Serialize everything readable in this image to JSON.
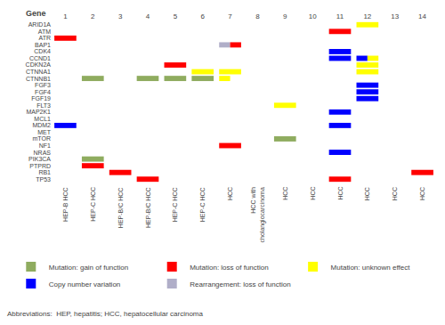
{
  "chart_data": {
    "type": "oncoprint",
    "ylabel": "Gene",
    "categories": [
      "1",
      "2",
      "3",
      "4",
      "5",
      "6",
      "7",
      "8",
      "9",
      "10",
      "11",
      "12",
      "13",
      "14"
    ],
    "rows": [
      "ARID1A",
      "ATM",
      "ATR",
      "BAP1",
      "CDK4",
      "CCND1",
      "CDKN2A",
      "CTNNA1",
      "CTNNB1",
      "FGF3",
      "FGF4",
      "FGF19",
      "FLT3",
      "MAP2K1",
      "MCL1",
      "MDM2",
      "MET",
      "mTOR",
      "NF1",
      "NRAS",
      "PIK3CA",
      "PTPRD",
      "RB1",
      "TP53"
    ],
    "column_labels": [
      "HEP-B HCC",
      "HEP-C HCC",
      "HEP-B/C HCC",
      "HEP-B/C HCC",
      "HEP-C HCC",
      "HEP-C HCC",
      "HCC",
      "HCC with\ncholangiocarcinoma",
      "HCC",
      "HCC",
      "HCC",
      "HCC",
      "HCC",
      "HCC"
    ],
    "cells": [
      {
        "gene": "ARID1A",
        "patient": 12,
        "color": "#ffff00",
        "xf": 0.0,
        "wf": 1.0
      },
      {
        "gene": "ATM",
        "patient": 11,
        "color": "#ff0000",
        "xf": 0.0,
        "wf": 1.0
      },
      {
        "gene": "ATR",
        "patient": 1,
        "color": "#ff0000",
        "xf": 0.0,
        "wf": 1.0
      },
      {
        "gene": "BAP1",
        "patient": 7,
        "color": "#b0aec8",
        "xf": 0.0,
        "wf": 0.5
      },
      {
        "gene": "BAP1",
        "patient": 7,
        "color": "#ff0000",
        "xf": 0.5,
        "wf": 0.5
      },
      {
        "gene": "CDK4",
        "patient": 11,
        "color": "#0000ff",
        "xf": 0.0,
        "wf": 1.0
      },
      {
        "gene": "CCND1",
        "patient": 11,
        "color": "#0000ff",
        "xf": 0.0,
        "wf": 1.0
      },
      {
        "gene": "CCND1",
        "patient": 12,
        "color": "#0000ff",
        "xf": 0.0,
        "wf": 0.5
      },
      {
        "gene": "CCND1",
        "patient": 12,
        "color": "#ffff00",
        "xf": 0.5,
        "wf": 0.5
      },
      {
        "gene": "CDKN2A",
        "patient": 5,
        "color": "#ff0000",
        "xf": 0.0,
        "wf": 1.0
      },
      {
        "gene": "CDKN2A",
        "patient": 12,
        "color": "#ffff00",
        "xf": 0.0,
        "wf": 1.0
      },
      {
        "gene": "CTNNA1",
        "patient": 6,
        "color": "#ffff00",
        "xf": 0.0,
        "wf": 1.0
      },
      {
        "gene": "CTNNA1",
        "patient": 7,
        "color": "#ffff00",
        "xf": 0.0,
        "wf": 1.0
      },
      {
        "gene": "CTNNA1",
        "patient": 12,
        "color": "#ffff00",
        "xf": 0.0,
        "wf": 1.0
      },
      {
        "gene": "CTNNB1",
        "patient": 2,
        "color": "#8fac5f",
        "xf": 0.0,
        "wf": 1.0
      },
      {
        "gene": "CTNNB1",
        "patient": 4,
        "color": "#8fac5f",
        "xf": 0.0,
        "wf": 1.0
      },
      {
        "gene": "CTNNB1",
        "patient": 5,
        "color": "#8fac5f",
        "xf": 0.0,
        "wf": 1.0
      },
      {
        "gene": "CTNNB1",
        "patient": 6,
        "color": "#8fac5f",
        "xf": 0.0,
        "wf": 1.0
      },
      {
        "gene": "CTNNB1",
        "patient": 7,
        "color": "#ffff00",
        "xf": 0.0,
        "wf": 0.5
      },
      {
        "gene": "FGF3",
        "patient": 12,
        "color": "#0000ff",
        "xf": 0.0,
        "wf": 1.0
      },
      {
        "gene": "FGF4",
        "patient": 12,
        "color": "#0000ff",
        "xf": 0.0,
        "wf": 1.0
      },
      {
        "gene": "FGF19",
        "patient": 12,
        "color": "#0000ff",
        "xf": 0.0,
        "wf": 1.0
      },
      {
        "gene": "FLT3",
        "patient": 9,
        "color": "#ffff00",
        "xf": 0.0,
        "wf": 1.0
      },
      {
        "gene": "MAP2K1",
        "patient": 11,
        "color": "#0000ff",
        "xf": 0.0,
        "wf": 1.0
      },
      {
        "gene": "MDM2",
        "patient": 1,
        "color": "#0000ff",
        "xf": 0.0,
        "wf": 1.0
      },
      {
        "gene": "MDM2",
        "patient": 11,
        "color": "#0000ff",
        "xf": 0.0,
        "wf": 1.0
      },
      {
        "gene": "mTOR",
        "patient": 9,
        "color": "#8fac5f",
        "xf": 0.0,
        "wf": 1.0
      },
      {
        "gene": "NF1",
        "patient": 7,
        "color": "#ff0000",
        "xf": 0.0,
        "wf": 1.0
      },
      {
        "gene": "NRAS",
        "patient": 11,
        "color": "#0000ff",
        "xf": 0.0,
        "wf": 1.0
      },
      {
        "gene": "PIK3CA",
        "patient": 2,
        "color": "#8fac5f",
        "xf": 0.0,
        "wf": 1.0
      },
      {
        "gene": "PTPRD",
        "patient": 2,
        "color": "#ff0000",
        "xf": 0.0,
        "wf": 1.0
      },
      {
        "gene": "RB1",
        "patient": 3,
        "color": "#ff0000",
        "xf": 0.0,
        "wf": 1.0
      },
      {
        "gene": "RB1",
        "patient": 14,
        "color": "#ff0000",
        "xf": 0.0,
        "wf": 1.0
      },
      {
        "gene": "TP53",
        "patient": 4,
        "color": "#ff0000",
        "xf": 0.0,
        "wf": 1.0
      },
      {
        "gene": "TP53",
        "patient": 11,
        "color": "#ff0000",
        "xf": 0.0,
        "wf": 1.0
      }
    ],
    "series": [
      {
        "name": "Mutation: gain of function",
        "color": "#8fac5f"
      },
      {
        "name": "Mutation: loss of function",
        "color": "#ff0000"
      },
      {
        "name": "Mutation: unknown effect",
        "color": "#ffff00"
      },
      {
        "name": "Copy number variation",
        "color": "#0000ff"
      },
      {
        "name": "Rearrangement: loss of function",
        "color": "#b0aec8"
      }
    ],
    "annotation": "Abbreviations:  HEP, hepatitis; HCC, hepatocellular carcinoma",
    "grid": false,
    "legend": "bottom"
  }
}
